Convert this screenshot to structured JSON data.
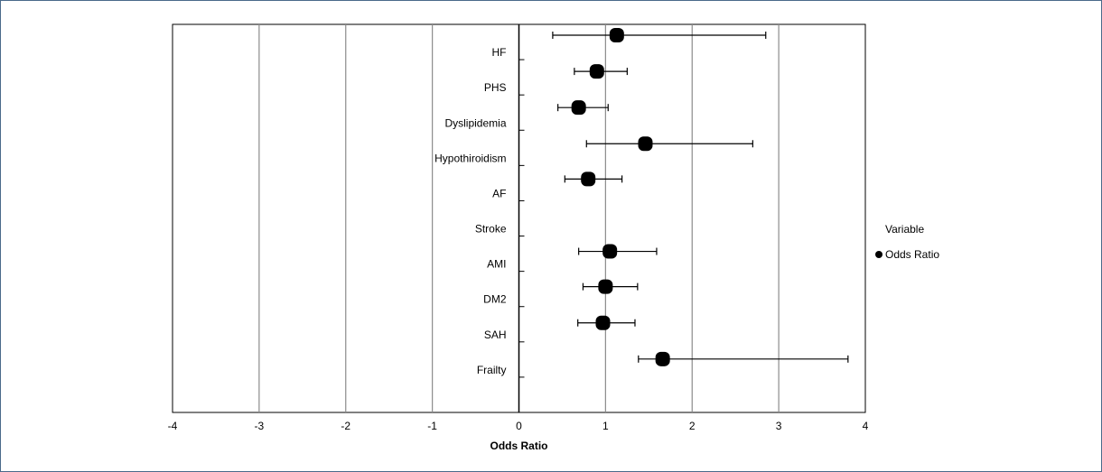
{
  "chart_data": {
    "type": "scatter",
    "subtype": "forest-plot",
    "title": "",
    "xlabel": "Odds Ratio",
    "ylabel": "",
    "xlim": [
      -4,
      4
    ],
    "xticks": [
      -4,
      -3,
      -2,
      -1,
      0,
      1,
      2,
      3,
      4
    ],
    "grid": "vertical",
    "categories": [
      "HF",
      "PHS",
      "Dyslipidemia",
      "Hypothiroidism",
      "AF",
      "Stroke",
      "AMI",
      "DM2",
      "SAH",
      "Frailty"
    ],
    "series": [
      {
        "name": "Odds Ratio",
        "points": [
          {
            "label": "HF",
            "or": 1.13,
            "low": 0.39,
            "high": 2.85
          },
          {
            "label": "PHS",
            "or": 0.9,
            "low": 0.64,
            "high": 1.25
          },
          {
            "label": "Dyslipidemia",
            "or": 0.69,
            "low": 0.45,
            "high": 1.03
          },
          {
            "label": "Hypothiroidism",
            "or": 1.46,
            "low": 0.78,
            "high": 2.7
          },
          {
            "label": "AF",
            "or": 0.8,
            "low": 0.53,
            "high": 1.19
          },
          {
            "label": "AMI",
            "or": 1.05,
            "low": 0.69,
            "high": 1.59
          },
          {
            "label": "DM2",
            "or": 1.0,
            "low": 0.74,
            "high": 1.37
          },
          {
            "label": "SAH",
            "or": 0.97,
            "low": 0.68,
            "high": 1.34
          },
          {
            "label": "Frailty",
            "or": 1.66,
            "low": 1.38,
            "high": 3.8
          }
        ]
      }
    ],
    "legend": {
      "title": "Variable",
      "position": "right",
      "entries": [
        "Odds Ratio"
      ]
    }
  }
}
